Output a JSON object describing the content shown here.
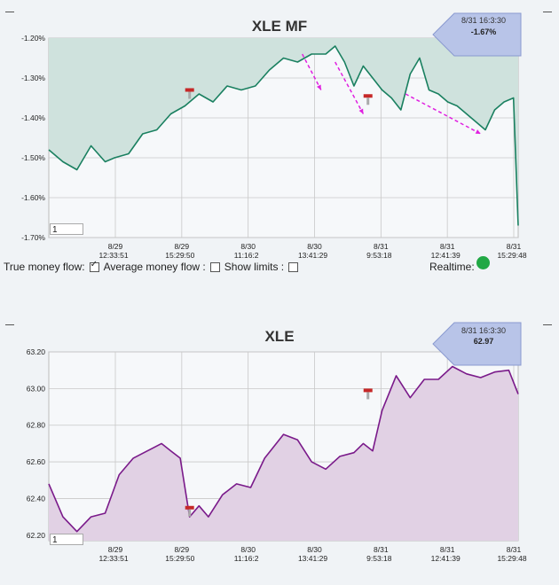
{
  "charts": {
    "mf": {
      "title": "XLE MF",
      "badge_time": "8/31 16:3:30",
      "badge_value": "-1.67%",
      "input_value": "1",
      "y_ticks": [
        "-1.20%",
        "-1.30%",
        "-1.40%",
        "-1.50%",
        "-1.60%",
        "-1.70%"
      ],
      "y_tick_values": [
        -1.2,
        -1.3,
        -1.4,
        -1.5,
        -1.6,
        -1.7
      ],
      "x_tick_dates": [
        "8/29",
        "8/29",
        "8/30",
        "8/30",
        "8/31",
        "8/31",
        "8/31"
      ],
      "x_tick_times": [
        "12:33:51",
        "15:29:50",
        "11:16:2",
        "13:41:29",
        "9:53:18",
        "12:41:39",
        "15:29:48"
      ],
      "colors": {
        "line": "#1a8060",
        "fill": "#cfe2dd"
      }
    },
    "price": {
      "title": "XLE",
      "badge_time": "8/31 16:3:30",
      "badge_value": "62.97",
      "input_value": "1",
      "y_ticks": [
        "63.20",
        "63.00",
        "62.80",
        "62.60",
        "62.40",
        "62.20"
      ],
      "y_tick_values": [
        63.2,
        63.0,
        62.8,
        62.6,
        62.4,
        62.2
      ],
      "x_tick_dates": [
        "8/29",
        "8/29",
        "8/30",
        "8/30",
        "8/31",
        "8/31",
        "8/31"
      ],
      "x_tick_times": [
        "12:33:51",
        "15:29:50",
        "11:16:2",
        "13:41:29",
        "9:53:18",
        "12:41:39",
        "15:29:48"
      ],
      "colors": {
        "line": "#7a1a8a",
        "fill": "#e1d1e4"
      }
    }
  },
  "controls": {
    "true_flow_label": "True money flow:",
    "avg_flow_label": "Average money flow :",
    "show_limits_label": "Show limits :",
    "realtime_label": "Realtime:",
    "true_flow_checked": true,
    "avg_flow_checked": false,
    "show_limits_checked": false,
    "realtime_color": "#21a845"
  },
  "chart_data": [
    {
      "type": "area",
      "title": "XLE MF",
      "ylim": [
        -1.7,
        -1.2
      ],
      "x_labels": [
        "8/29 12:33:51",
        "8/29 15:29:50",
        "8/30 11:16:2",
        "8/30 13:41:29",
        "8/31 9:53:18",
        "8/31 12:41:39",
        "8/31 15:29:48"
      ],
      "x": [
        0,
        0.03,
        0.06,
        0.09,
        0.12,
        0.14,
        0.17,
        0.2,
        0.23,
        0.26,
        0.29,
        0.32,
        0.35,
        0.38,
        0.41,
        0.44,
        0.47,
        0.5,
        0.53,
        0.56,
        0.59,
        0.61,
        0.63,
        0.65,
        0.67,
        0.69,
        0.71,
        0.73,
        0.75,
        0.77,
        0.79,
        0.81,
        0.83,
        0.85,
        0.87,
        0.89,
        0.91,
        0.93,
        0.95,
        0.97,
        0.99,
        1.0
      ],
      "series": [
        {
          "values": [
            -1.48,
            -1.51,
            -1.53,
            -1.47,
            -1.51,
            -1.5,
            -1.49,
            -1.44,
            -1.43,
            -1.39,
            -1.37,
            -1.34,
            -1.36,
            -1.32,
            -1.33,
            -1.32,
            -1.28,
            -1.25,
            -1.26,
            -1.24,
            -1.24,
            -1.22,
            -1.26,
            -1.32,
            -1.27,
            -1.3,
            -1.33,
            -1.35,
            -1.38,
            -1.29,
            -1.25,
            -1.33,
            -1.34,
            -1.36,
            -1.37,
            -1.39,
            -1.41,
            -1.43,
            -1.38,
            -1.36,
            -1.35,
            -1.67
          ]
        }
      ]
    },
    {
      "type": "area",
      "title": "XLE",
      "ylim": [
        62.17,
        63.2
      ],
      "x_labels": [
        "8/29 12:33:51",
        "8/29 15:29:50",
        "8/30 11:16:2",
        "8/30 13:41:29",
        "8/31 9:53:18",
        "8/31 12:41:39",
        "8/31 15:29:48"
      ],
      "x": [
        0,
        0.03,
        0.06,
        0.09,
        0.12,
        0.15,
        0.18,
        0.21,
        0.24,
        0.26,
        0.28,
        0.3,
        0.32,
        0.34,
        0.37,
        0.4,
        0.43,
        0.46,
        0.5,
        0.53,
        0.56,
        0.59,
        0.62,
        0.65,
        0.67,
        0.69,
        0.71,
        0.74,
        0.77,
        0.8,
        0.83,
        0.86,
        0.89,
        0.92,
        0.95,
        0.98,
        1.0
      ],
      "series": [
        {
          "values": [
            62.48,
            62.3,
            62.22,
            62.3,
            62.32,
            62.53,
            62.62,
            62.66,
            62.7,
            62.66,
            62.62,
            62.3,
            62.36,
            62.3,
            62.42,
            62.48,
            62.46,
            62.62,
            62.75,
            62.72,
            62.6,
            62.56,
            62.63,
            62.65,
            62.7,
            62.66,
            62.88,
            63.07,
            62.95,
            63.05,
            63.05,
            63.12,
            63.08,
            63.06,
            63.09,
            63.1,
            62.97
          ]
        }
      ]
    }
  ]
}
